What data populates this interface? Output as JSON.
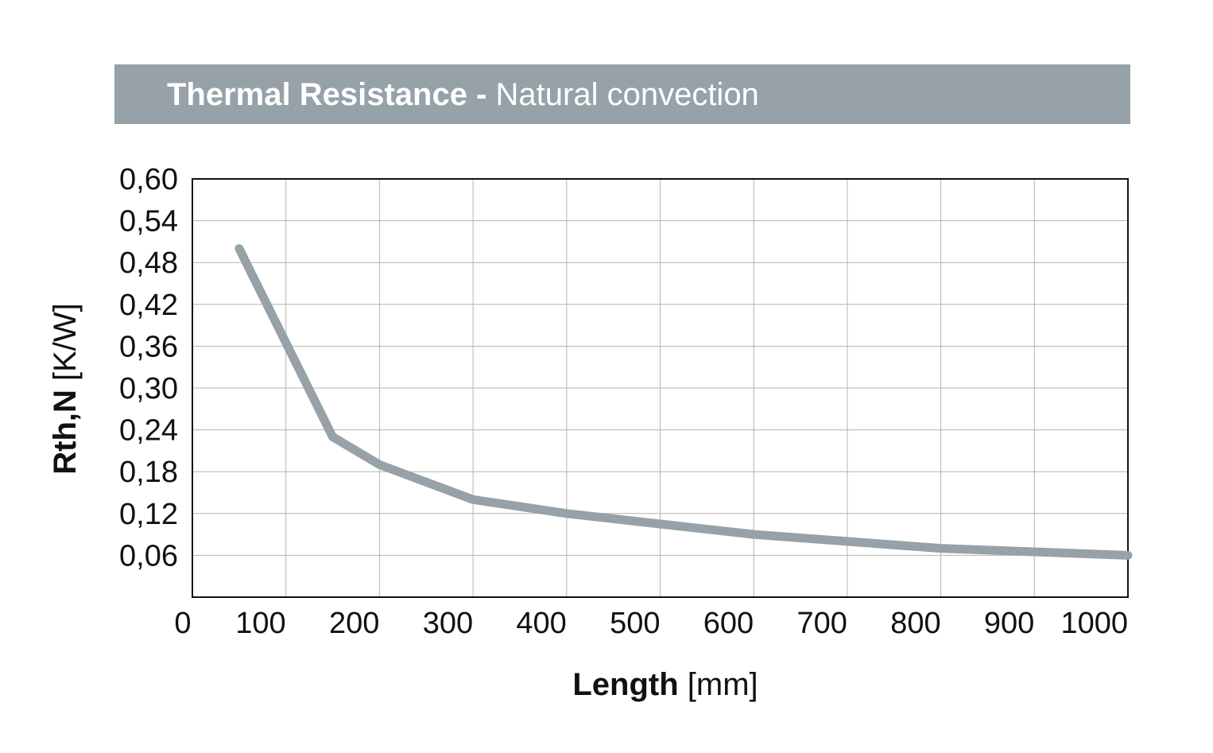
{
  "title": {
    "bold": "Thermal Resistance -",
    "normal": "Natural convection"
  },
  "colors": {
    "band": "#96a1a8",
    "line": "#96a1a8",
    "grid": "#b4b4b4",
    "axis": "#111111"
  },
  "chart_data": {
    "type": "line",
    "title": "Thermal Resistance - Natural convection",
    "xlabel": {
      "bold": "Length",
      "normal": "[mm]"
    },
    "ylabel": {
      "bold": "Rth,N",
      "normal": "[K/W]"
    },
    "xlim": [
      0,
      1000
    ],
    "ylim": [
      0,
      0.6
    ],
    "x_ticks": [
      "0",
      "100",
      "200",
      "300",
      "400",
      "500",
      "600",
      "700",
      "800",
      "900",
      "1000"
    ],
    "y_ticks": [
      "0,06",
      "0,12",
      "0,18",
      "0,24",
      "0,30",
      "0,36",
      "0,42",
      "0,48",
      "0,54",
      "0,60"
    ],
    "grid": true,
    "series": [
      {
        "x": [
          50,
          150,
          200,
          300,
          400,
          500,
          600,
          700,
          800,
          900,
          1000
        ],
        "y": [
          0.5,
          0.23,
          0.19,
          0.14,
          0.12,
          0.105,
          0.09,
          0.08,
          0.07,
          0.065,
          0.06
        ]
      }
    ]
  }
}
